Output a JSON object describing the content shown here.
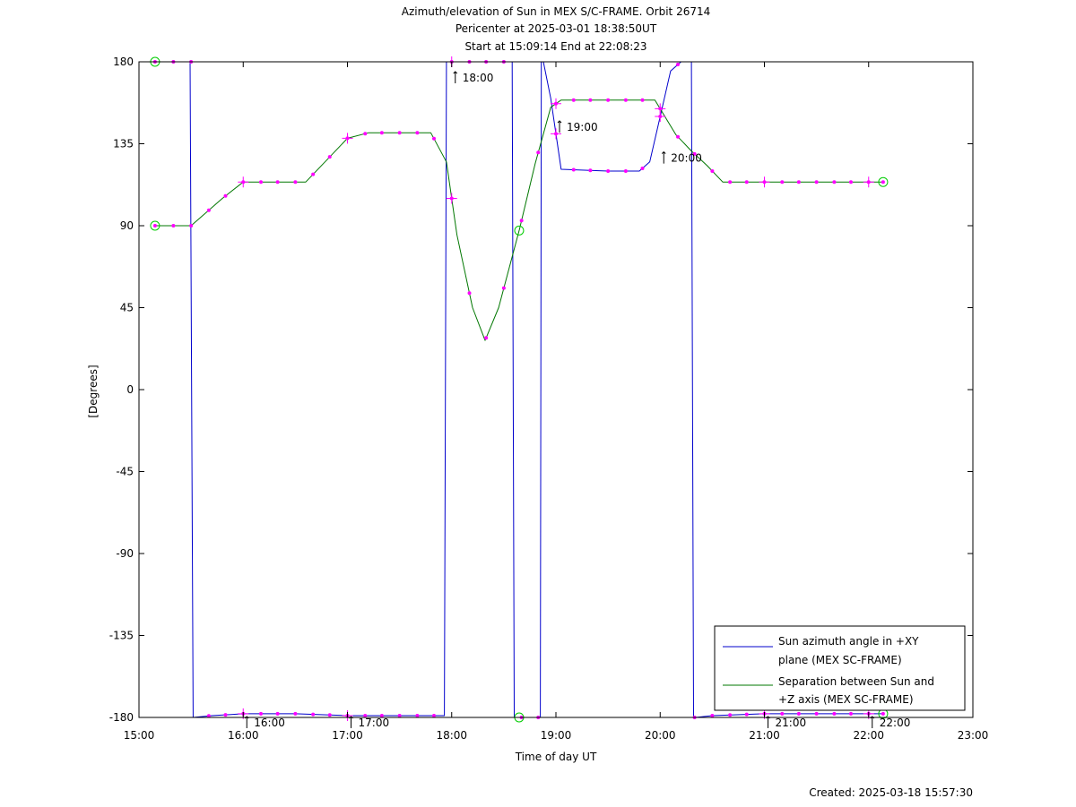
{
  "chart_data": {
    "type": "line",
    "title_lines": [
      "Azimuth/elevation of Sun in MEX S/C-FRAME.  Orbit 26714",
      "Pericenter at 2025-03-01 18:38:50UT",
      "Start at 15:09:14 End at 22:08:23"
    ],
    "xlabel": "Time of day UT",
    "ylabel": "[Degrees]",
    "xlim": [
      15,
      23
    ],
    "ylim": [
      -180,
      180
    ],
    "x_ticks": [
      {
        "v": 15,
        "label": "15:00"
      },
      {
        "v": 16,
        "label": "16:00"
      },
      {
        "v": 17,
        "label": "17:00"
      },
      {
        "v": 18,
        "label": "18:00"
      },
      {
        "v": 19,
        "label": "19:00"
      },
      {
        "v": 20,
        "label": "20:00"
      },
      {
        "v": 21,
        "label": "21:00"
      },
      {
        "v": 22,
        "label": "22:00"
      },
      {
        "v": 23,
        "label": "23:00"
      }
    ],
    "y_ticks": [
      {
        "v": 180,
        "label": "180"
      },
      {
        "v": 135,
        "label": "135"
      },
      {
        "v": 90,
        "label": "90"
      },
      {
        "v": 45,
        "label": "45"
      },
      {
        "v": 0,
        "label": "0"
      },
      {
        "v": -45,
        "label": "-45"
      },
      {
        "v": -90,
        "label": "-90"
      },
      {
        "v": -135,
        "label": "-135"
      },
      {
        "v": -180,
        "label": "-180"
      }
    ],
    "grid": false,
    "legend_position": "bottom-right",
    "series": [
      {
        "name": "Sun azimuth angle in +XY plane (MEX SC-FRAME)",
        "legend_lines": [
          "Sun azimuth angle in +XY",
          "plane (MEX SC-FRAME)"
        ],
        "color": "#0000cc",
        "x": [
          15.154,
          15.5,
          15.49,
          15.52,
          15.7,
          16.0,
          16.5,
          17.0,
          17.5,
          17.93,
          17.95,
          17.97,
          18.3,
          18.58,
          18.6,
          18.62,
          18.85,
          18.86,
          18.88,
          18.95,
          19.05,
          19.5,
          19.8,
          19.9,
          20.0,
          20.1,
          20.2,
          20.3,
          20.32,
          20.34,
          20.5,
          21.0,
          21.5,
          22.139
        ],
        "y": [
          180,
          180,
          180,
          -180,
          -179,
          -178,
          -178,
          -179,
          -179,
          -179,
          180,
          180,
          180,
          180,
          -180,
          -180,
          -180,
          180,
          180,
          160,
          121,
          120,
          120,
          125,
          150,
          175,
          180,
          180,
          -180,
          -180,
          -179,
          -178,
          -178,
          -178
        ]
      },
      {
        "name": "Separation between Sun and +Z axis (MEX SC-FRAME)",
        "legend_lines": [
          "Separation between Sun and",
          "+Z axis (MEX SC-FRAME)"
        ],
        "color": "#007700",
        "x": [
          15.154,
          15.5,
          15.8,
          16.0,
          16.6,
          16.8,
          17.0,
          17.2,
          17.8,
          17.95,
          18.05,
          18.2,
          18.32,
          18.45,
          18.65,
          18.8,
          18.95,
          19.05,
          19.5,
          19.95,
          20.15,
          20.3,
          20.45,
          20.6,
          21.0,
          21.5,
          22.139
        ],
        "y": [
          90,
          90,
          105,
          114,
          114,
          126,
          138,
          141,
          141,
          125,
          85,
          45,
          27,
          45,
          88,
          124,
          155,
          159,
          159,
          159,
          140,
          131,
          123,
          114,
          114,
          114,
          114
        ]
      }
    ],
    "sample_marker_times": [
      15.154,
      15.33,
      15.5,
      15.67,
      15.83,
      16.0,
      16.17,
      16.33,
      16.5,
      16.67,
      16.83,
      17.0,
      17.17,
      17.33,
      17.5,
      17.67,
      17.83,
      18.0,
      18.17,
      18.33,
      18.5,
      18.67,
      18.83,
      19.0,
      19.17,
      19.33,
      19.5,
      19.67,
      19.83,
      20.0,
      20.17,
      20.33,
      20.5,
      20.67,
      20.83,
      21.0,
      21.17,
      21.33,
      21.5,
      21.67,
      21.83,
      22.0,
      22.139
    ],
    "hour_markers": [
      16,
      17,
      18,
      19,
      20,
      21,
      22
    ],
    "endpoint_markers": [
      15.154,
      18.647,
      22.139
    ],
    "annotations": [
      {
        "text": "16:00",
        "x": 16.0,
        "y": -180
      },
      {
        "text": "17:00",
        "x": 17.0,
        "y": -180
      },
      {
        "text": "18:00",
        "x": 18.0,
        "y": 180
      },
      {
        "text": "19:00",
        "x": 19.0,
        "y": 150
      },
      {
        "text": "20:00",
        "x": 20.0,
        "y": 133
      },
      {
        "text": "21:00",
        "x": 21.0,
        "y": -180
      },
      {
        "text": "22:00",
        "x": 22.0,
        "y": -180
      }
    ],
    "footer": "Created: 2025-03-18 15:57:30"
  }
}
